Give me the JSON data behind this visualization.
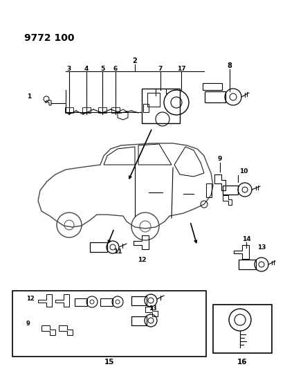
{
  "diagram_part_number": "9772 100",
  "background_color": "#ffffff",
  "fig_width": 4.12,
  "fig_height": 5.33,
  "dpi": 100,
  "lw": 0.8,
  "car_color": "#333333",
  "label_fontsize": 6.5,
  "title_fontsize": 10
}
